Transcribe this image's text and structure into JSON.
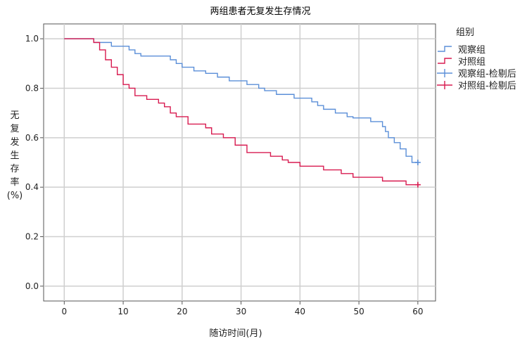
{
  "chart_data": {
    "type": "line",
    "subtype": "kaplan-meier step survival curve",
    "title": "两组患者无复发生存情况",
    "xlabel": "随访时间(月)",
    "ylabel_lines": [
      "无",
      "复",
      "发",
      "生",
      "存",
      "率",
      "(%)"
    ],
    "xlim": [
      -3.5,
      63
    ],
    "ylim": [
      -0.06,
      1.06
    ],
    "xticks": [
      0,
      10,
      20,
      30,
      40,
      50,
      60
    ],
    "yticks": [
      0.0,
      0.2,
      0.4,
      0.6,
      0.8,
      1.0
    ],
    "xtick_labels": [
      "0",
      "10",
      "20",
      "30",
      "40",
      "50",
      "60"
    ],
    "ytick_labels": [
      "0.0",
      "0.2",
      "0.4",
      "0.6",
      "0.8",
      "1.0"
    ],
    "grid": true,
    "legend": {
      "title": "组别",
      "placement": "top-right outside plot",
      "entries": [
        "观察组",
        "对照组",
        "观察组-检剔后",
        "对照组-检剔后"
      ]
    },
    "series": [
      {
        "name": "观察组",
        "color": "#5b8fd8",
        "x": [
          0,
          5,
          8,
          11,
          12,
          13,
          18,
          19,
          20,
          22,
          24,
          26,
          28,
          31,
          33,
          34,
          35,
          36,
          39,
          42,
          43,
          44,
          46,
          48,
          49,
          52,
          54,
          54.5,
          55,
          56,
          57,
          58,
          59,
          60
        ],
        "y": [
          1.0,
          0.985,
          0.97,
          0.955,
          0.94,
          0.93,
          0.915,
          0.9,
          0.885,
          0.87,
          0.86,
          0.845,
          0.83,
          0.815,
          0.8,
          0.79,
          0.79,
          0.775,
          0.76,
          0.745,
          0.73,
          0.715,
          0.7,
          0.685,
          0.68,
          0.665,
          0.645,
          0.625,
          0.6,
          0.58,
          0.555,
          0.525,
          0.5,
          0.5
        ]
      },
      {
        "name": "对照组",
        "color": "#d81b50",
        "x": [
          0,
          5,
          6,
          7,
          8,
          9,
          10,
          11,
          12,
          14,
          16,
          17,
          18,
          19,
          21,
          24,
          25,
          27,
          29,
          31,
          35,
          37,
          38,
          40,
          44,
          47,
          49,
          54,
          58,
          60
        ],
        "y": [
          1.0,
          0.985,
          0.955,
          0.915,
          0.885,
          0.855,
          0.815,
          0.8,
          0.77,
          0.755,
          0.74,
          0.725,
          0.7,
          0.685,
          0.655,
          0.64,
          0.615,
          0.6,
          0.57,
          0.54,
          0.525,
          0.51,
          0.5,
          0.485,
          0.47,
          0.455,
          0.44,
          0.425,
          0.41,
          0.41
        ]
      }
    ],
    "censored": [
      {
        "series": "观察组-检剔后",
        "color": "#5b8fd8",
        "x": [
          60
        ],
        "y": [
          0.5
        ]
      },
      {
        "series": "对照组-检剔后",
        "color": "#d81b50",
        "x": [
          60
        ],
        "y": [
          0.41
        ]
      }
    ]
  }
}
